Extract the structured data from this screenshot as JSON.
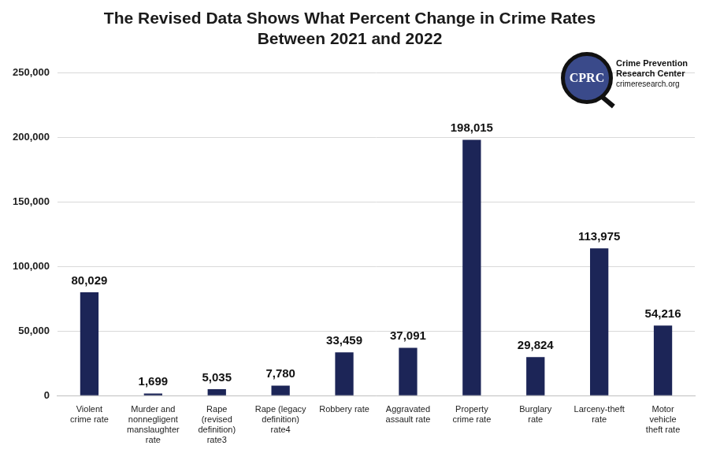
{
  "chart_data": {
    "type": "bar",
    "title": [
      "The Revised Data Shows What Percent Change in Crime Rates",
      "Between 2021 and 2022"
    ],
    "annotations": [
      "CPRC",
      "Crime Prevention",
      "Research Center",
      "crimeresearch.org"
    ],
    "categories": [
      "Violent crime rate",
      "Murder and nonnegligent manslaughter rate",
      "Rape (revised definition) rate3",
      "Rape (legacy definition) rate4",
      "Robbery rate",
      "Aggravated assault rate",
      "Property crime rate",
      "Burglary rate",
      "Larceny-theft rate",
      "Motor vehicle theft rate"
    ],
    "values": [
      80029,
      1699,
      5035,
      7780,
      33459,
      37091,
      198015,
      29824,
      113975,
      54216
    ],
    "value_labels": [
      "80,029",
      "1,699",
      "5,035",
      "7,780",
      "33,459",
      "37,091",
      "198,015",
      "29,824",
      "113,975",
      "54,216"
    ],
    "color": "#1c2557",
    "ylim": [
      0,
      250000
    ],
    "yticks": [
      0,
      {
        "value": 50000,
        "label": "50,000"
      },
      {
        "value": 100000,
        "label": "100,000"
      },
      {
        "value": 150000,
        "label": "150,000"
      },
      {
        "value": 200000,
        "label": "200,000"
      },
      {
        "value": 250000,
        "label": "250,000"
      }
    ],
    "grid": true,
    "data_labels": true
  }
}
